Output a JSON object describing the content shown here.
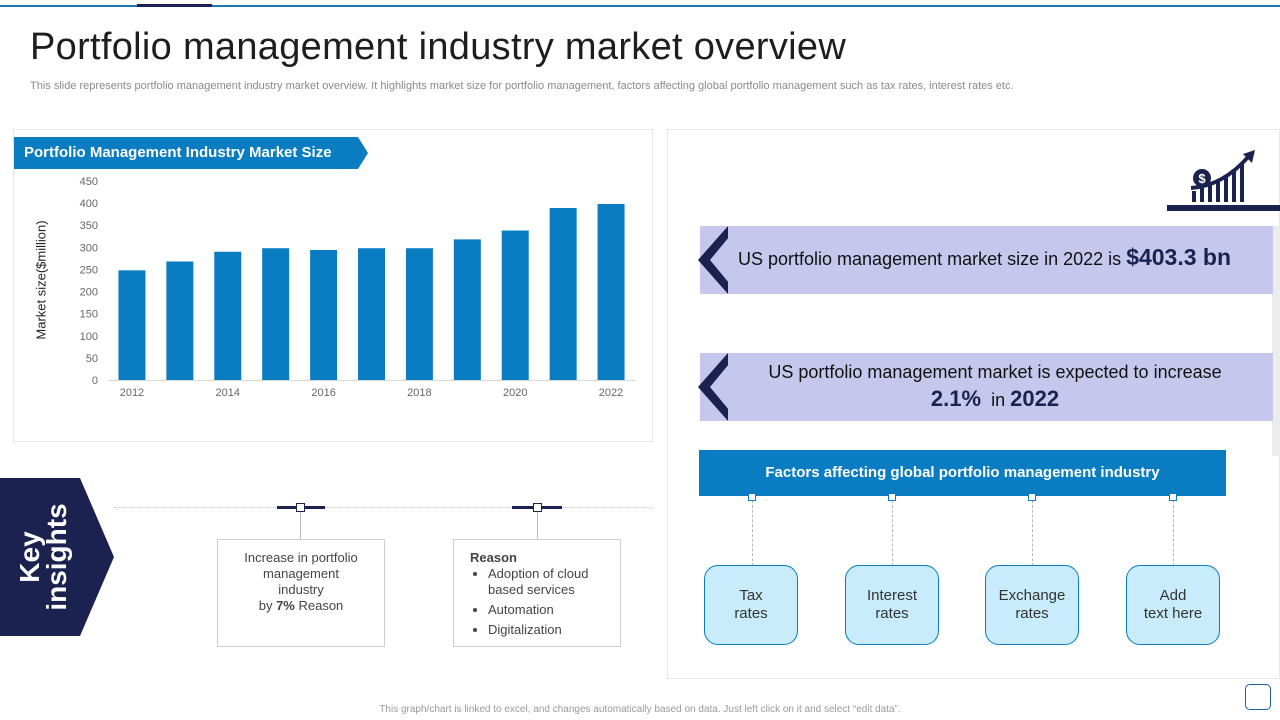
{
  "title": "Portfolio management industry market overview",
  "subtitle": "This slide represents portfolio management industry market overview. It highlights market size for portfolio management, factors affecting global portfolio management such as tax rates, interest rates etc.",
  "chart_header": "Portfolio Management Industry Market Size",
  "chart_data": {
    "type": "bar",
    "title": "Portfolio Management Industry Market Size",
    "xlabel": "",
    "ylabel": "Market size($million)",
    "categories": [
      "2012",
      "2013",
      "2014",
      "2015",
      "2016",
      "2017",
      "2018",
      "2019",
      "2020",
      "2021",
      "2022"
    ],
    "x_tick_labels": [
      "2012",
      "",
      "2014",
      "",
      "2016",
      "",
      "2018",
      "",
      "2020",
      "",
      "2022"
    ],
    "values": [
      248,
      268,
      290,
      298,
      294,
      298,
      298,
      318,
      338,
      389,
      398
    ],
    "ylim": [
      0,
      450
    ],
    "yticks": [
      0,
      50,
      100,
      150,
      200,
      250,
      300,
      350,
      400,
      450
    ],
    "grid": false,
    "legend": "none",
    "colors": {
      "bar": "#0a7cc1",
      "axis": "#d9d9d9",
      "tick": "#666666"
    }
  },
  "insight1": {
    "prefix": "US portfolio management market size in 2022 is ",
    "value": "$403.3 bn"
  },
  "insight2": {
    "line1": "US portfolio management market is expected to increase",
    "percent": "2.1%",
    "mid": "in",
    "year": "2022"
  },
  "factors": {
    "title": "Factors affecting global portfolio management industry",
    "items": [
      {
        "line1": "Tax",
        "line2": "rates"
      },
      {
        "line1": "Interest",
        "line2": "rates"
      },
      {
        "line1": "Exchange",
        "line2": "rates"
      },
      {
        "line1": "Add",
        "line2": "text here"
      }
    ]
  },
  "key_insights": {
    "line1": "Key",
    "line2": "insights"
  },
  "box1": {
    "line1": "Increase in portfolio",
    "line2": "management",
    "line3": "industry",
    "by": "by ",
    "pct": "7%",
    "reason": " Reason"
  },
  "box2": {
    "heading": "Reason",
    "bullets": [
      "Adoption of cloud based services",
      "Automation",
      "Digitalization"
    ]
  },
  "footer": "This graph/chart is linked to excel, and changes automatically based on data. Just left click on it and select “edit data”.",
  "icons": {
    "growth": "dollar-growth-chart-icon"
  },
  "colors": {
    "primary": "#0a7cc1",
    "navy": "#1b2250",
    "banner": "#c5c8ec",
    "factor_box": "#c8ecfb"
  }
}
